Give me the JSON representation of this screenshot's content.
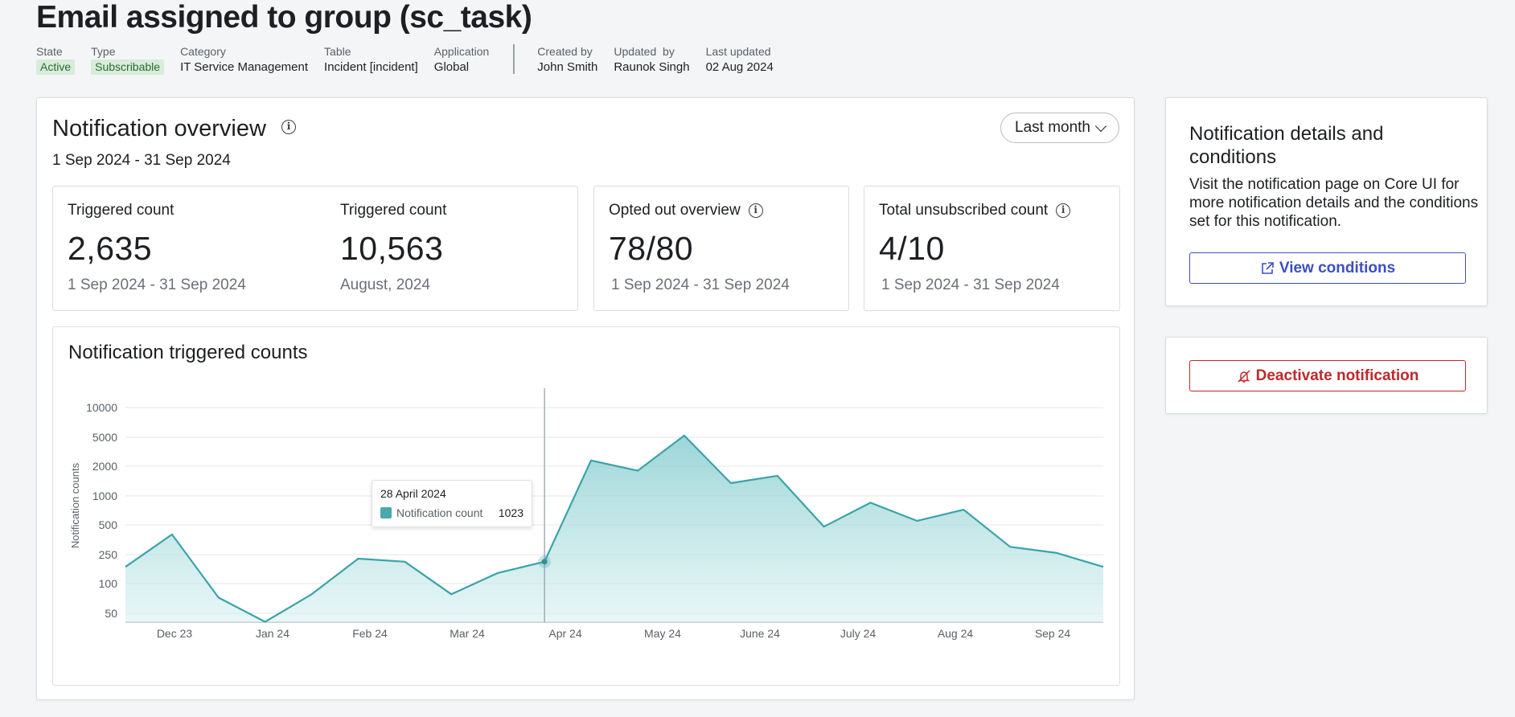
{
  "header": {
    "title": "Email assigned to group (sc_task)",
    "meta": [
      {
        "label": "State",
        "value": "Active",
        "badge": true
      },
      {
        "label": "Type",
        "value": "Subscribable",
        "badge": true
      },
      {
        "label": "Category",
        "value": "IT Service Management"
      },
      {
        "label": "Table",
        "value": "Incident [incident]"
      },
      {
        "label": "Application",
        "value": "Global"
      }
    ],
    "meta_right": [
      {
        "label": "Created by",
        "value": "John Smith"
      },
      {
        "label": "Updated  by",
        "value": "Raunok Singh"
      },
      {
        "label": "Last updated",
        "value": "02 Aug 2024"
      }
    ]
  },
  "overview": {
    "title": "Notification overview",
    "date_range": "1 Sep 2024 - 31 Sep 2024",
    "period_button": "Last month",
    "stats": [
      {
        "label": "Triggered count",
        "value": "2,635",
        "sub": "1 Sep 2024 - 31 Sep 2024"
      },
      {
        "label": "Triggered count",
        "value": "10,563",
        "sub": "August, 2024"
      },
      {
        "label": "Opted out overview",
        "value": "78/80",
        "sub": "1 Sep 2024 - 31 Sep 2024"
      },
      {
        "label": "Total unsubscribed count",
        "value": "4/10",
        "sub": "1 Sep 2024 - 31 Sep 2024"
      }
    ]
  },
  "chart": {
    "title": "Notification triggered counts",
    "tooltip": {
      "date": "28 April 2024",
      "label": "Notification count",
      "value": "1023"
    }
  },
  "chart_data": {
    "type": "area",
    "title": "Notification triggered counts",
    "ylabel": "Notification counts",
    "xlabel": "",
    "y_scale": "log",
    "y_ticks": [
      50,
      100,
      250,
      500,
      1000,
      2000,
      5000,
      10000
    ],
    "x_ticks": [
      "Dec 23",
      "Jan 24",
      "Feb 24",
      "Mar 24",
      "Apr 24",
      "May 24",
      "June 24",
      "July 24",
      "Aug 24",
      "Sep 24"
    ],
    "grid": true,
    "color": "#3aa3a8",
    "series": [
      {
        "x": [
          "Nov 23",
          "Dec 23",
          "Dec 23",
          "Jan 24",
          "Jan 24",
          "Feb 24",
          "Feb 24",
          "Mar 24",
          "Mar 24",
          "Apr 24",
          "Apr 24",
          "May 24",
          "May 24",
          "June 24",
          "June 24",
          "July 24",
          "July 24",
          "Aug 24",
          "Aug 24",
          "Sep 24",
          "Sep 24",
          "Sep 24"
        ],
        "values": [
          170,
          400,
          72,
          41,
          78,
          220,
          200,
          78,
          140,
          200,
          2400,
          1800,
          5200,
          1350,
          1600,
          480,
          850,
          550,
          720,
          300,
          260,
          170
        ]
      }
    ]
  },
  "side": {
    "title": "Notification details and conditions",
    "text": "Visit the notification page on Core UI for more notification details and the conditions set for this notification.",
    "view_button": "View conditions",
    "deactivate_button": "Deactivate notification"
  }
}
